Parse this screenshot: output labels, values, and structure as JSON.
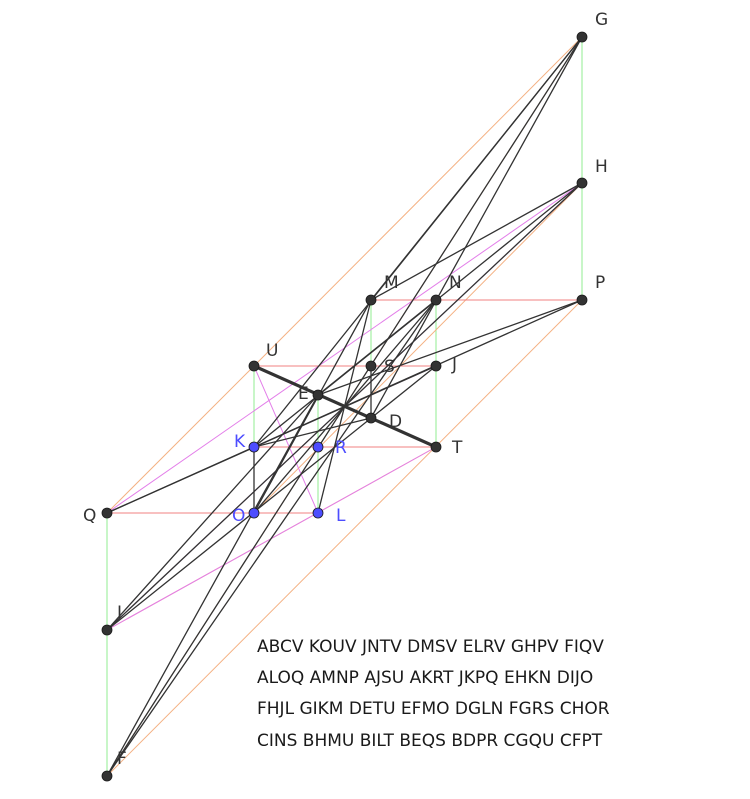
{
  "colors": {
    "black_line": "#333333",
    "orange_line": "#f4b183",
    "magenta_line": "#e37ee9",
    "red_line": "#f08080",
    "green_line": "#90ee90",
    "dark_point": "#333333",
    "blue_point": "#4d4dff",
    "dark_label": "#333333",
    "blue_label": "#4d4dff"
  },
  "points": {
    "G": {
      "label": "G",
      "style": "dark"
    },
    "H": {
      "label": "H",
      "style": "dark"
    },
    "P": {
      "label": "P",
      "style": "dark"
    },
    "M": {
      "label": "M",
      "style": "dark"
    },
    "N": {
      "label": "N",
      "style": "dark"
    },
    "U": {
      "label": "U",
      "style": "dark"
    },
    "S": {
      "label": "S",
      "style": "dark"
    },
    "J": {
      "label": "J",
      "style": "dark"
    },
    "E": {
      "label": "E",
      "style": "dark"
    },
    "D": {
      "label": "D",
      "style": "dark"
    },
    "T": {
      "label": "T",
      "style": "dark"
    },
    "K": {
      "label": "K",
      "style": "blue"
    },
    "R": {
      "label": "R",
      "style": "blue"
    },
    "O": {
      "label": "O",
      "style": "blue"
    },
    "L": {
      "label": "L",
      "style": "blue"
    },
    "Q": {
      "label": "Q",
      "style": "dark"
    },
    "I": {
      "label": "I",
      "style": "dark"
    },
    "F": {
      "label": "F",
      "style": "dark"
    }
  },
  "segments": {
    "black": [
      [
        "G",
        "M"
      ],
      [
        "G",
        "D"
      ],
      [
        "G",
        "K"
      ],
      [
        "G",
        "F"
      ],
      [
        "H",
        "M"
      ],
      [
        "H",
        "K"
      ],
      [
        "H",
        "I"
      ],
      [
        "N",
        "O"
      ],
      [
        "N",
        "F"
      ],
      [
        "N",
        "E"
      ],
      [
        "P",
        "E"
      ],
      [
        "P",
        "Q"
      ],
      [
        "J",
        "Q"
      ],
      [
        "J",
        "I"
      ],
      [
        "M",
        "O"
      ],
      [
        "M",
        "L"
      ],
      [
        "E",
        "F"
      ],
      [
        "E",
        "I"
      ],
      [
        "D",
        "K"
      ],
      [
        "S",
        "D"
      ],
      [
        "U",
        "T"
      ],
      [
        "K",
        "O"
      ]
    ],
    "orange": [
      [
        "G",
        "U"
      ],
      [
        "G",
        "F"
      ],
      [
        "H",
        "O"
      ],
      [
        "P",
        "F"
      ],
      [
        "T",
        "I"
      ],
      [
        "U",
        "Q"
      ]
    ],
    "magenta": [
      [
        "H",
        "Q"
      ],
      [
        "H",
        "I"
      ],
      [
        "J",
        "K"
      ],
      [
        "T",
        "I"
      ],
      [
        "U",
        "L"
      ]
    ],
    "red": [
      [
        "M",
        "P"
      ],
      [
        "U",
        "J"
      ],
      [
        "K",
        "T"
      ],
      [
        "Q",
        "L"
      ]
    ],
    "green": [
      [
        "G",
        "P"
      ],
      [
        "M",
        "D"
      ],
      [
        "N",
        "T"
      ],
      [
        "U",
        "O"
      ],
      [
        "E",
        "L"
      ],
      [
        "Q",
        "F"
      ]
    ]
  },
  "thick_segments": [
    [
      "U",
      "T"
    ]
  ],
  "caption": [
    "ABCV KOUV JNTV DMSV ELRV GHPV FIQV",
    "ALOQ AMNP AJSU AKRT JKPQ EHKN DIJO",
    "FHJL GIKM DETU EFMO DGLN FGRS CHOR",
    "CINS BHMU BILT BEQS BDPR CGQU CFPT"
  ]
}
